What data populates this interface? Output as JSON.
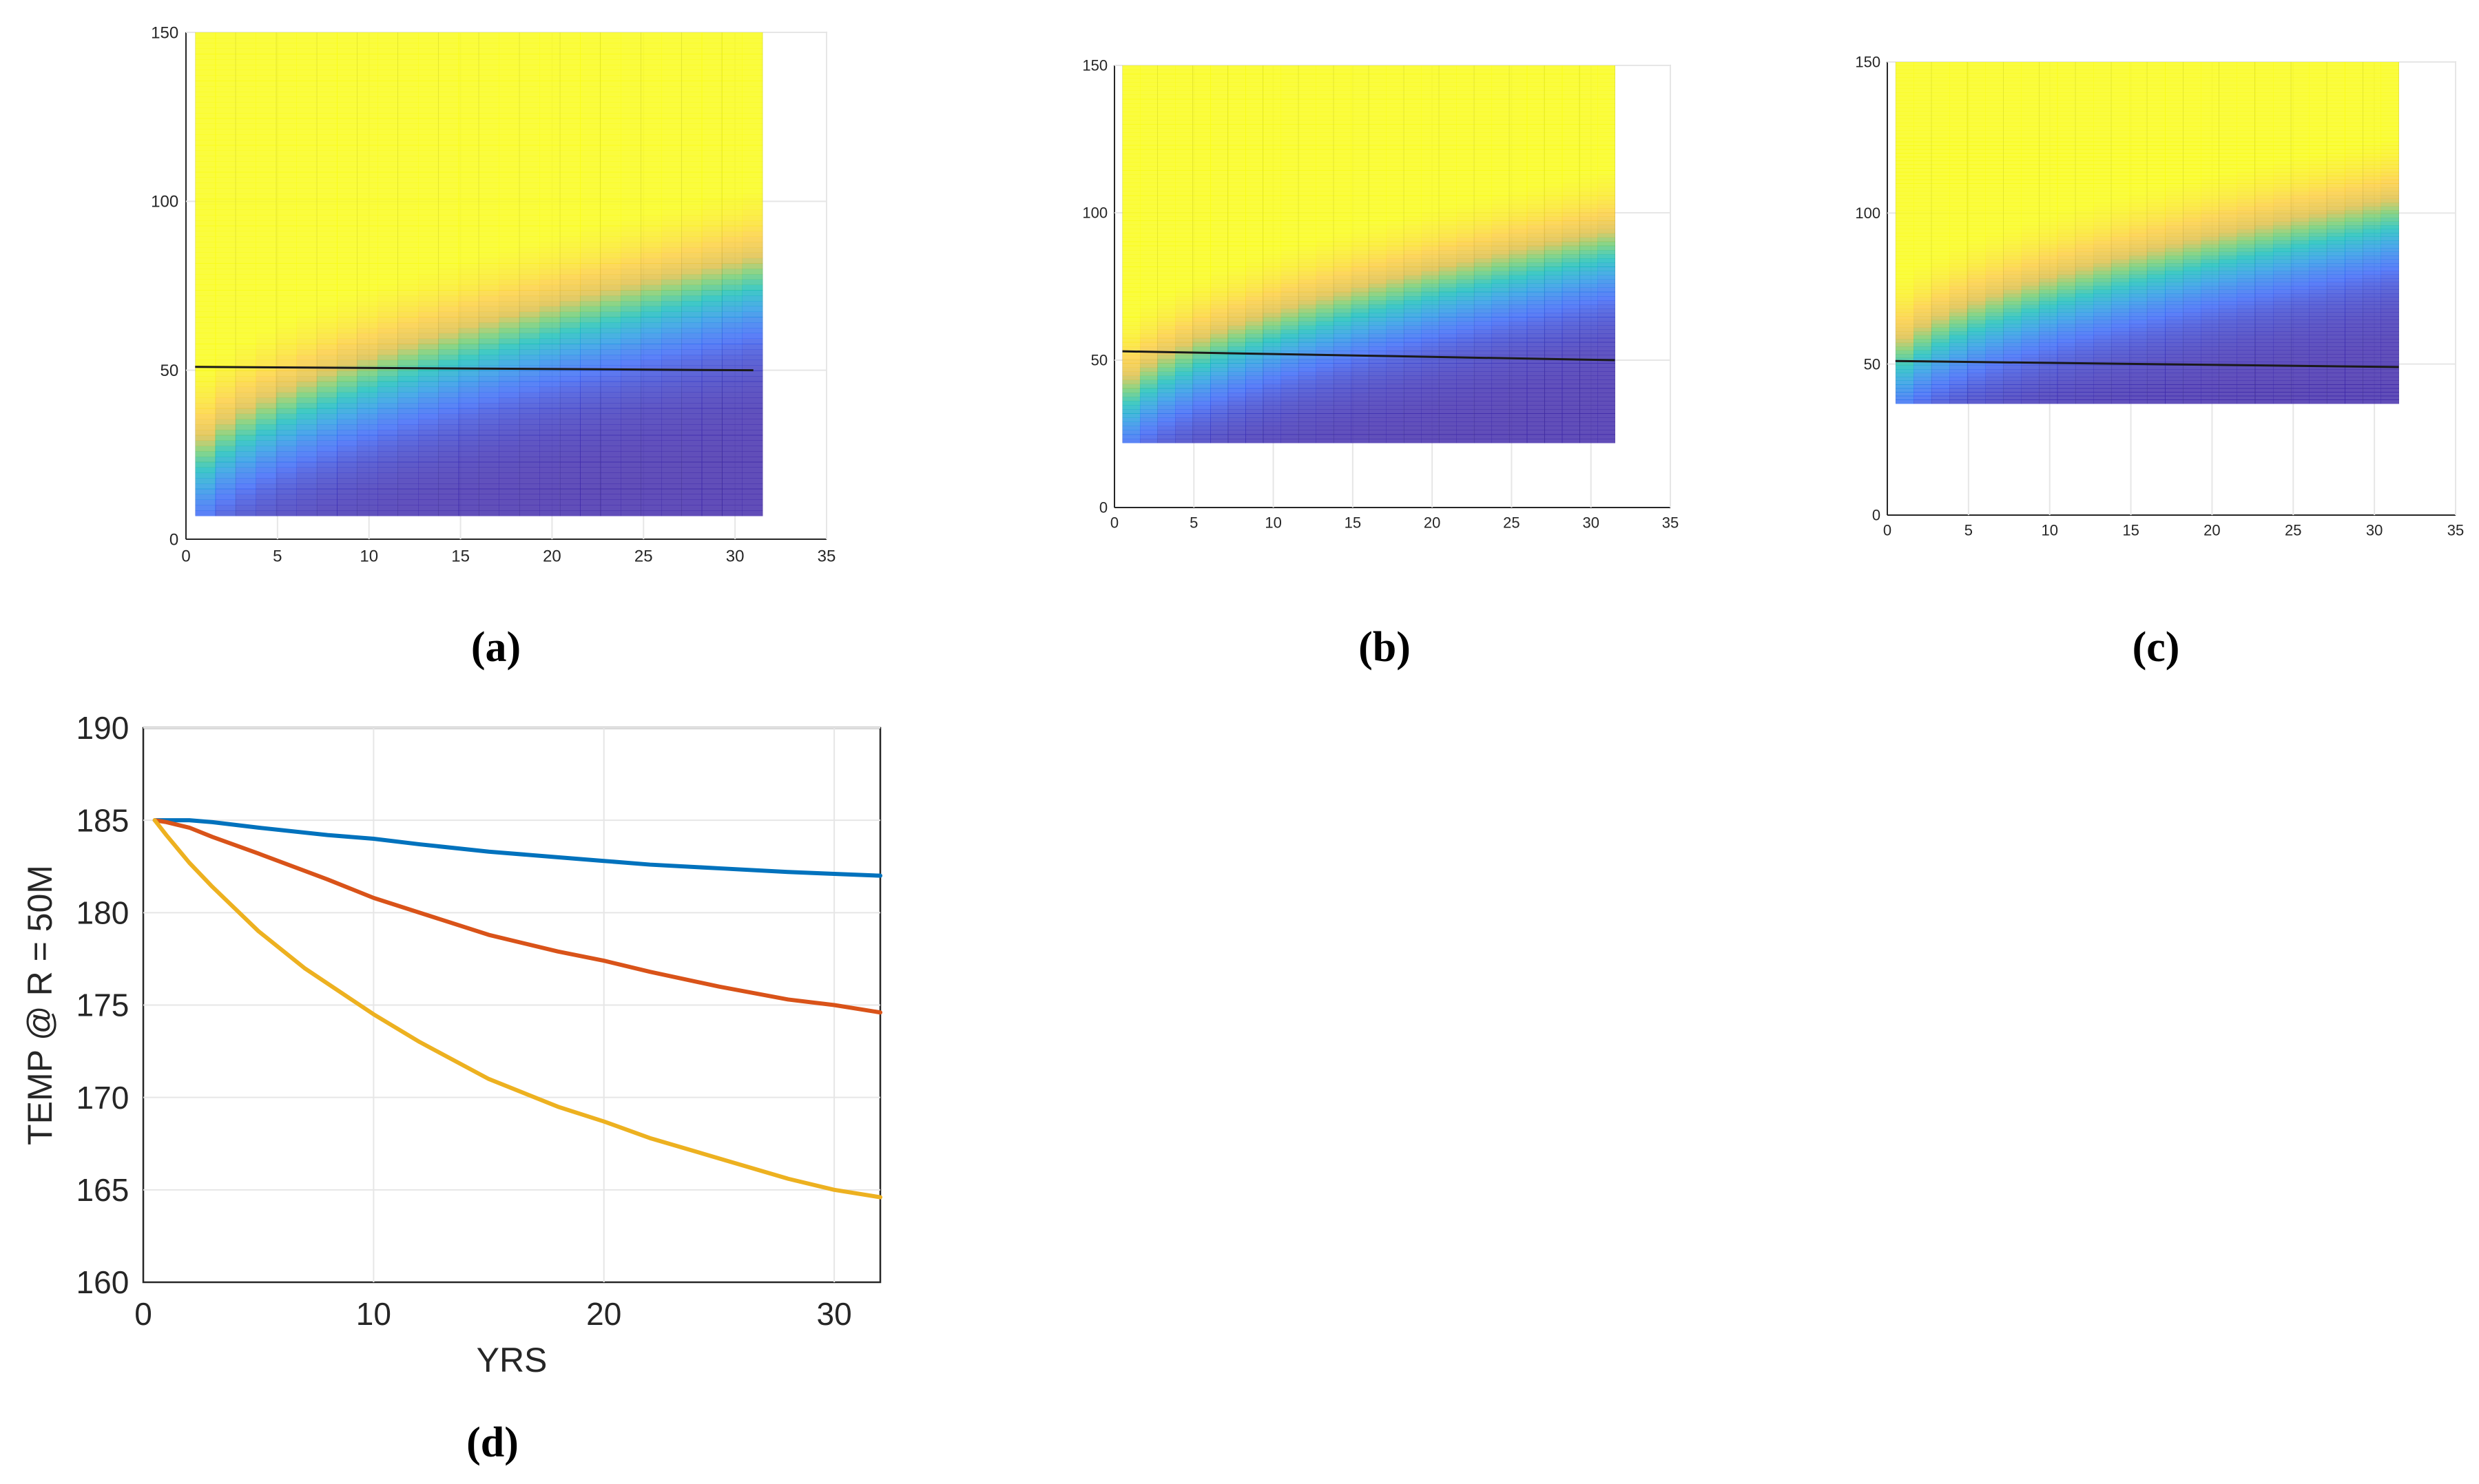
{
  "figure": {
    "captions": [
      "(a)",
      "(b)",
      "(c)",
      "(d)"
    ]
  },
  "chart_data": [
    {
      "id": "a",
      "type": "heatmap",
      "caption": "(a)",
      "title": "",
      "xlabel": "",
      "ylabel": "",
      "xlim": [
        0,
        35
      ],
      "ylim": [
        0,
        150
      ],
      "xticks": [
        "0",
        "5",
        "10",
        "15",
        "20",
        "25",
        "30",
        "35"
      ],
      "yticks": [
        "0",
        "50",
        "100",
        "150"
      ],
      "grid": true,
      "field": {
        "x_range": [
          0.5,
          31.5
        ],
        "y_range": [
          7,
          150
        ]
      },
      "line": {
        "color": "#1a1a1a",
        "x": [
          0.5,
          31
        ],
        "y": [
          51,
          50
        ]
      }
    },
    {
      "id": "b",
      "type": "heatmap",
      "caption": "(b)",
      "title": "",
      "xlabel": "",
      "ylabel": "",
      "xlim": [
        0,
        35
      ],
      "ylim": [
        0,
        150
      ],
      "xticks": [
        "0",
        "5",
        "10",
        "15",
        "20",
        "25",
        "30",
        "35"
      ],
      "yticks": [
        "0",
        "50",
        "100",
        "150"
      ],
      "grid": true,
      "field": {
        "x_range": [
          0.5,
          31.5
        ],
        "y_range": [
          22,
          150
        ]
      },
      "line": {
        "color": "#1a1a1a",
        "x": [
          0.5,
          31.5
        ],
        "y": [
          53,
          50
        ]
      }
    },
    {
      "id": "c",
      "type": "heatmap",
      "caption": "(c)",
      "title": "",
      "xlabel": "",
      "ylabel": "",
      "xlim": [
        0,
        35
      ],
      "ylim": [
        0,
        150
      ],
      "xticks": [
        "0",
        "5",
        "10",
        "15",
        "20",
        "25",
        "30",
        "35"
      ],
      "yticks": [
        "0",
        "50",
        "100",
        "150"
      ],
      "grid": true,
      "field": {
        "x_range": [
          0.5,
          31.5
        ],
        "y_range": [
          37,
          150
        ]
      },
      "line": {
        "color": "#1a1a1a",
        "x": [
          0.5,
          31.5
        ],
        "y": [
          51,
          49
        ]
      }
    },
    {
      "id": "d",
      "type": "line",
      "caption": "(d)",
      "title": "",
      "xlabel": "YRS",
      "ylabel": "TEMP @ R = 50M",
      "xlim": [
        0,
        32
      ],
      "ylim": [
        160,
        190
      ],
      "xticks": [
        "0",
        "10",
        "20",
        "30"
      ],
      "yticks": [
        "160",
        "165",
        "170",
        "175",
        "180",
        "185",
        "190"
      ],
      "grid": true,
      "series": [
        {
          "color": "#0072bd",
          "x": [
            0.5,
            2,
            3,
            5,
            8,
            10,
            12,
            15,
            18,
            20,
            22,
            25,
            28,
            30,
            32
          ],
          "y": [
            185,
            185,
            184.9,
            184.6,
            184.2,
            184.0,
            183.7,
            183.3,
            183.0,
            182.8,
            182.6,
            182.4,
            182.2,
            182.1,
            182.0
          ]
        },
        {
          "color": "#d95319",
          "x": [
            0.5,
            1,
            2,
            3,
            5,
            8,
            10,
            12,
            15,
            18,
            20,
            22,
            25,
            28,
            30,
            32
          ],
          "y": [
            185,
            184.9,
            184.6,
            184.1,
            183.2,
            181.8,
            180.8,
            180.0,
            178.8,
            177.9,
            177.4,
            176.8,
            176.0,
            175.3,
            175.0,
            174.6
          ]
        },
        {
          "color": "#edb120",
          "x": [
            0.5,
            1,
            2,
            3,
            5,
            7,
            10,
            12,
            15,
            18,
            20,
            22,
            25,
            28,
            30,
            32
          ],
          "y": [
            185,
            184.2,
            182.7,
            181.4,
            179.0,
            177.0,
            174.5,
            173.0,
            171.0,
            169.5,
            168.7,
            167.8,
            166.7,
            165.6,
            165.0,
            164.6
          ]
        }
      ]
    }
  ]
}
